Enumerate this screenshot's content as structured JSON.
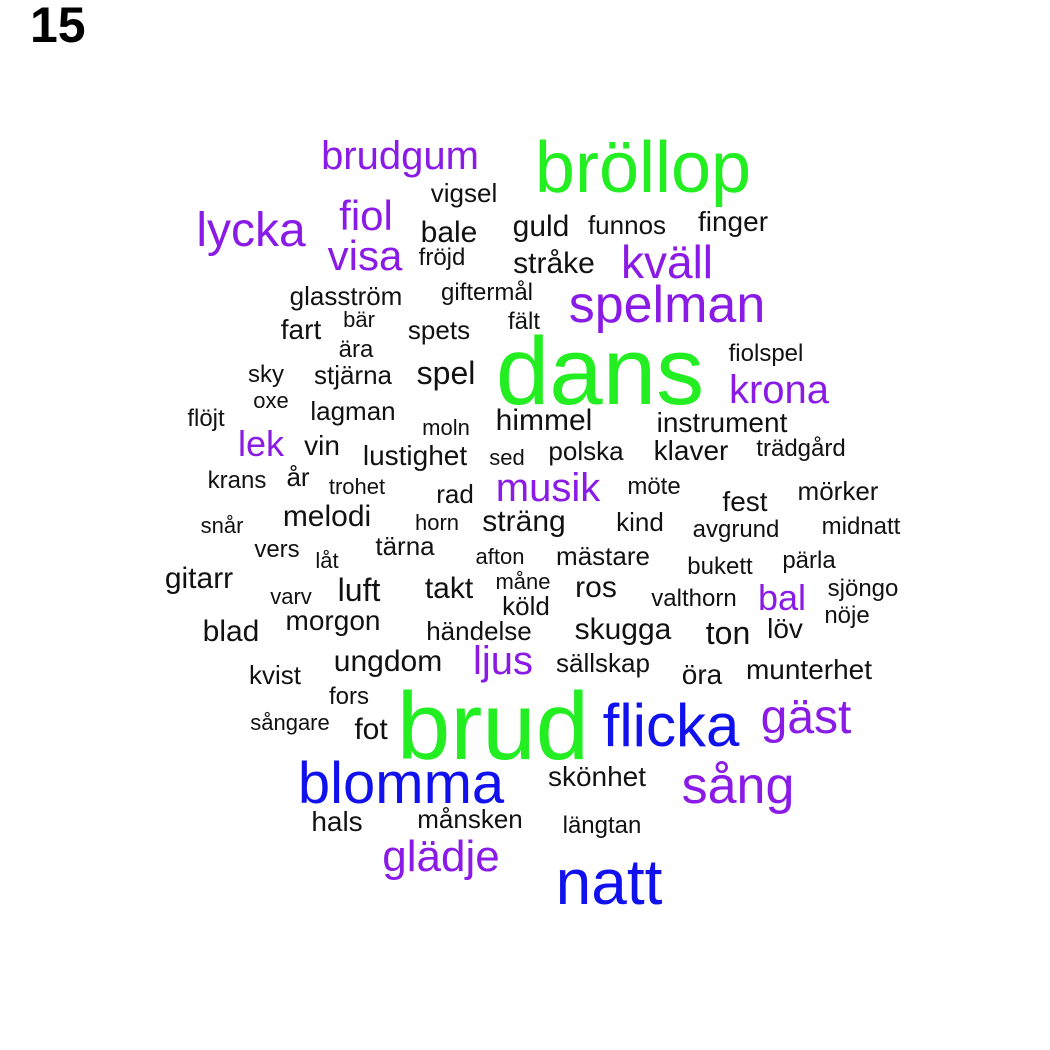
{
  "panel_label": "15",
  "colors": {
    "largest": "#22ee22",
    "large": "#1111ee",
    "medium": "#8a1ae6",
    "small": "#111111"
  },
  "words": [
    {
      "text": "dans",
      "size_rank": 1,
      "color": "largest"
    },
    {
      "text": "brud",
      "size_rank": 1,
      "color": "largest"
    },
    {
      "text": "bröllop",
      "size_rank": 1,
      "color": "largest"
    },
    {
      "text": "natt",
      "size_rank": 2,
      "color": "large"
    },
    {
      "text": "flicka",
      "size_rank": 2,
      "color": "large"
    },
    {
      "text": "blomma",
      "size_rank": 2,
      "color": "large"
    },
    {
      "text": "sång",
      "size_rank": 3,
      "color": "medium"
    },
    {
      "text": "spelman",
      "size_rank": 3,
      "color": "medium"
    },
    {
      "text": "kväll",
      "size_rank": 3,
      "color": "medium"
    },
    {
      "text": "lycka",
      "size_rank": 3,
      "color": "medium"
    },
    {
      "text": "glädje",
      "size_rank": 3,
      "color": "medium"
    },
    {
      "text": "gäst",
      "size_rank": 3,
      "color": "medium"
    },
    {
      "text": "brudgum",
      "size_rank": 3,
      "color": "medium"
    },
    {
      "text": "fiol",
      "size_rank": 3,
      "color": "medium"
    },
    {
      "text": "visa",
      "size_rank": 3,
      "color": "medium"
    },
    {
      "text": "krona",
      "size_rank": 3,
      "color": "medium"
    },
    {
      "text": "musik",
      "size_rank": 3,
      "color": "medium"
    },
    {
      "text": "ljus",
      "size_rank": 3,
      "color": "medium"
    },
    {
      "text": "lek",
      "size_rank": 3,
      "color": "medium"
    },
    {
      "text": "bal",
      "size_rank": 3,
      "color": "medium"
    },
    {
      "text": "vigsel",
      "size_rank": 4,
      "color": "small"
    },
    {
      "text": "bale",
      "size_rank": 4,
      "color": "small"
    },
    {
      "text": "guld",
      "size_rank": 4,
      "color": "small"
    },
    {
      "text": "funnos",
      "size_rank": 4,
      "color": "small"
    },
    {
      "text": "finger",
      "size_rank": 4,
      "color": "small"
    },
    {
      "text": "fröjd",
      "size_rank": 4,
      "color": "small"
    },
    {
      "text": "stråke",
      "size_rank": 4,
      "color": "small"
    },
    {
      "text": "glasström",
      "size_rank": 4,
      "color": "small"
    },
    {
      "text": "giftermål",
      "size_rank": 4,
      "color": "small"
    },
    {
      "text": "fart",
      "size_rank": 4,
      "color": "small"
    },
    {
      "text": "bär",
      "size_rank": 4,
      "color": "small"
    },
    {
      "text": "spets",
      "size_rank": 4,
      "color": "small"
    },
    {
      "text": "fält",
      "size_rank": 4,
      "color": "small"
    },
    {
      "text": "ära",
      "size_rank": 4,
      "color": "small"
    },
    {
      "text": "fiolspel",
      "size_rank": 4,
      "color": "small"
    },
    {
      "text": "sky",
      "size_rank": 4,
      "color": "small"
    },
    {
      "text": "stjärna",
      "size_rank": 4,
      "color": "small"
    },
    {
      "text": "spel",
      "size_rank": 4,
      "color": "small"
    },
    {
      "text": "oxe",
      "size_rank": 4,
      "color": "small"
    },
    {
      "text": "lagman",
      "size_rank": 4,
      "color": "small"
    },
    {
      "text": "flöjt",
      "size_rank": 4,
      "color": "small"
    },
    {
      "text": "moln",
      "size_rank": 4,
      "color": "small"
    },
    {
      "text": "himmel",
      "size_rank": 4,
      "color": "small"
    },
    {
      "text": "instrument",
      "size_rank": 4,
      "color": "small"
    },
    {
      "text": "vin",
      "size_rank": 4,
      "color": "small"
    },
    {
      "text": "lustighet",
      "size_rank": 4,
      "color": "small"
    },
    {
      "text": "sed",
      "size_rank": 4,
      "color": "small"
    },
    {
      "text": "polska",
      "size_rank": 4,
      "color": "small"
    },
    {
      "text": "klaver",
      "size_rank": 4,
      "color": "small"
    },
    {
      "text": "trädgård",
      "size_rank": 4,
      "color": "small"
    },
    {
      "text": "krans",
      "size_rank": 4,
      "color": "small"
    },
    {
      "text": "år",
      "size_rank": 4,
      "color": "small"
    },
    {
      "text": "trohet",
      "size_rank": 4,
      "color": "small"
    },
    {
      "text": "rad",
      "size_rank": 4,
      "color": "small"
    },
    {
      "text": "möte",
      "size_rank": 4,
      "color": "small"
    },
    {
      "text": "fest",
      "size_rank": 4,
      "color": "small"
    },
    {
      "text": "mörker",
      "size_rank": 4,
      "color": "small"
    },
    {
      "text": "snår",
      "size_rank": 4,
      "color": "small"
    },
    {
      "text": "melodi",
      "size_rank": 4,
      "color": "small"
    },
    {
      "text": "horn",
      "size_rank": 4,
      "color": "small"
    },
    {
      "text": "sträng",
      "size_rank": 4,
      "color": "small"
    },
    {
      "text": "kind",
      "size_rank": 4,
      "color": "small"
    },
    {
      "text": "avgrund",
      "size_rank": 4,
      "color": "small"
    },
    {
      "text": "midnatt",
      "size_rank": 4,
      "color": "small"
    },
    {
      "text": "vers",
      "size_rank": 4,
      "color": "small"
    },
    {
      "text": "tärna",
      "size_rank": 4,
      "color": "small"
    },
    {
      "text": "låt",
      "size_rank": 4,
      "color": "small"
    },
    {
      "text": "afton",
      "size_rank": 4,
      "color": "small"
    },
    {
      "text": "mästare",
      "size_rank": 4,
      "color": "small"
    },
    {
      "text": "bukett",
      "size_rank": 4,
      "color": "small"
    },
    {
      "text": "pärla",
      "size_rank": 4,
      "color": "small"
    },
    {
      "text": "gitarr",
      "size_rank": 4,
      "color": "small"
    },
    {
      "text": "varv",
      "size_rank": 4,
      "color": "small"
    },
    {
      "text": "luft",
      "size_rank": 4,
      "color": "small"
    },
    {
      "text": "takt",
      "size_rank": 4,
      "color": "small"
    },
    {
      "text": "måne",
      "size_rank": 4,
      "color": "small"
    },
    {
      "text": "ros",
      "size_rank": 4,
      "color": "small"
    },
    {
      "text": "köld",
      "size_rank": 4,
      "color": "small"
    },
    {
      "text": "valthorn",
      "size_rank": 4,
      "color": "small"
    },
    {
      "text": "sjöngo",
      "size_rank": 4,
      "color": "small"
    },
    {
      "text": "nöje",
      "size_rank": 4,
      "color": "small"
    },
    {
      "text": "blad",
      "size_rank": 4,
      "color": "small"
    },
    {
      "text": "morgon",
      "size_rank": 4,
      "color": "small"
    },
    {
      "text": "händelse",
      "size_rank": 4,
      "color": "small"
    },
    {
      "text": "skugga",
      "size_rank": 4,
      "color": "small"
    },
    {
      "text": "ton",
      "size_rank": 4,
      "color": "small"
    },
    {
      "text": "löv",
      "size_rank": 4,
      "color": "small"
    },
    {
      "text": "kvist",
      "size_rank": 4,
      "color": "small"
    },
    {
      "text": "ungdom",
      "size_rank": 4,
      "color": "small"
    },
    {
      "text": "sällskap",
      "size_rank": 4,
      "color": "small"
    },
    {
      "text": "öra",
      "size_rank": 4,
      "color": "small"
    },
    {
      "text": "munterhet",
      "size_rank": 4,
      "color": "small"
    },
    {
      "text": "fors",
      "size_rank": 4,
      "color": "small"
    },
    {
      "text": "sångare",
      "size_rank": 4,
      "color": "small"
    },
    {
      "text": "fot",
      "size_rank": 4,
      "color": "small"
    },
    {
      "text": "skönhet",
      "size_rank": 4,
      "color": "small"
    },
    {
      "text": "hals",
      "size_rank": 4,
      "color": "small"
    },
    {
      "text": "månsken",
      "size_rank": 4,
      "color": "small"
    },
    {
      "text": "längtan",
      "size_rank": 4,
      "color": "small"
    }
  ]
}
